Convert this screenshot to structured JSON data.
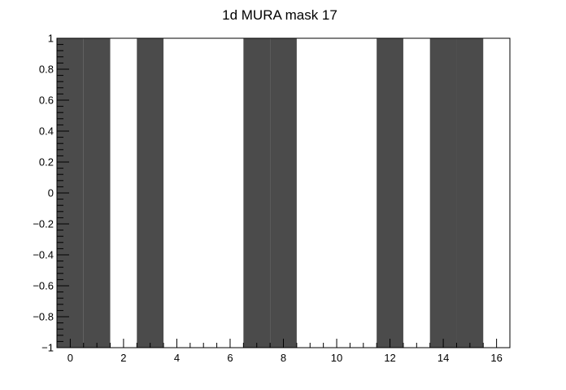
{
  "chart_data": {
    "type": "bar",
    "title": "1d MURA mask 17",
    "xlabel": "",
    "ylabel": "",
    "x": [
      0,
      1,
      2,
      3,
      4,
      5,
      6,
      7,
      8,
      9,
      10,
      11,
      12,
      13,
      14,
      15,
      16
    ],
    "values": [
      1,
      1,
      0,
      1,
      0,
      0,
      0,
      1,
      1,
      0,
      0,
      0,
      1,
      0,
      1,
      1,
      0
    ],
    "bar_width": 1,
    "xlim": [
      -0.5,
      16.5
    ],
    "ylim": [
      -1,
      1
    ],
    "x_tick_labels": [
      "0",
      "2",
      "4",
      "6",
      "8",
      "10",
      "12",
      "14",
      "16"
    ],
    "y_tick_labels": [
      "1",
      "0.8",
      "0.6",
      "0.4",
      "0.2",
      "0",
      "−0.2",
      "−0.4",
      "−0.6",
      "−0.8",
      "−1"
    ],
    "bar_color": "#4b4b4b",
    "grid": false,
    "legend": "none"
  }
}
